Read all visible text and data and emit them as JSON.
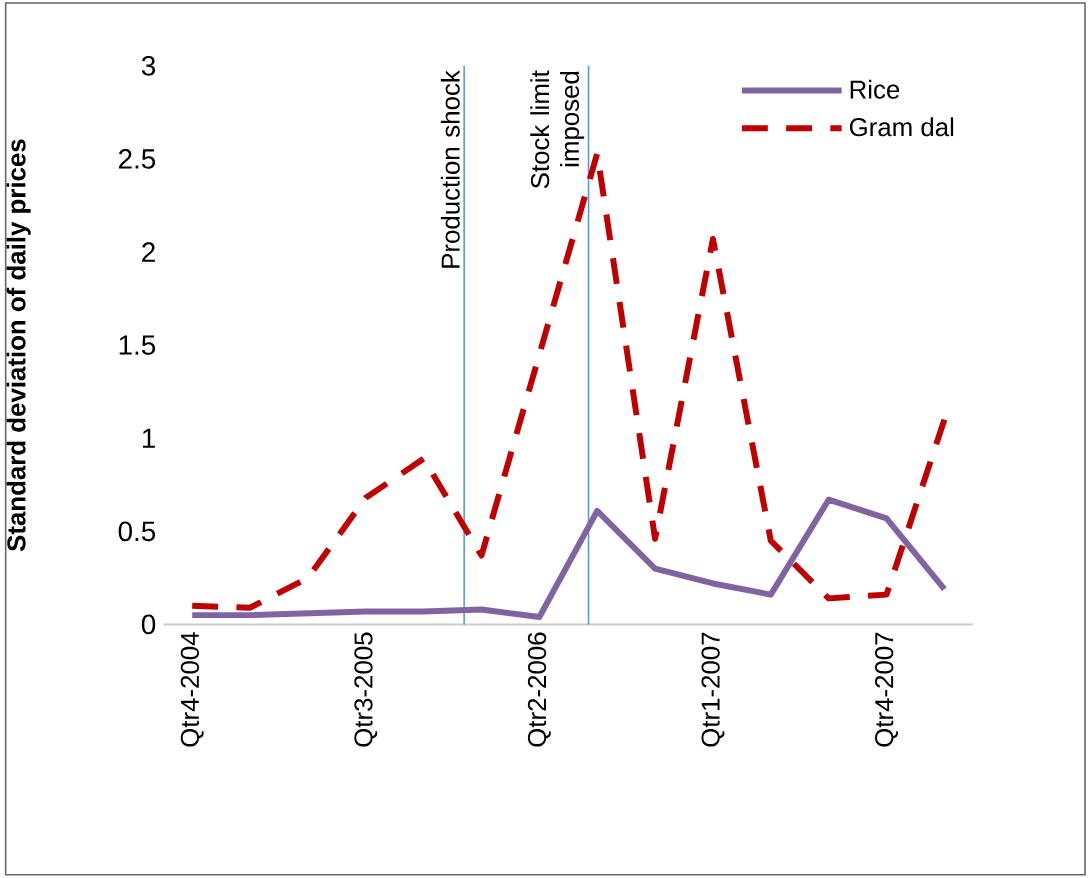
{
  "chart_data": {
    "type": "line",
    "ylabel": "Standard deviation of daily prices",
    "categories": [
      "Qtr4-2004",
      null,
      null,
      "Qtr3-2005",
      null,
      null,
      "Qtr2-2006",
      null,
      null,
      "Qtr1-2007",
      null,
      null,
      "Qtr4-2007",
      null
    ],
    "series": [
      {
        "name": "Rice",
        "color": "#8064a2",
        "line_style": "solid",
        "values": [
          0.05,
          0.05,
          0.06,
          0.07,
          0.07,
          0.08,
          0.04,
          0.61,
          0.3,
          0.22,
          0.16,
          0.67,
          0.57,
          0.19
        ]
      },
      {
        "name": "Gram dal",
        "color": "#c00000",
        "line_style": "dashed",
        "values": [
          0.1,
          0.09,
          0.25,
          0.68,
          0.89,
          0.37,
          1.45,
          2.53,
          0.46,
          2.07,
          0.45,
          0.14,
          0.16,
          1.1
        ]
      }
    ],
    "ylim": [
      0,
      3
    ],
    "yticks": [
      0,
      0.5,
      1,
      1.5,
      2,
      2.5,
      3
    ],
    "annotations": [
      "Production shock",
      "Stock limit imposed"
    ],
    "grid": false,
    "legend": "top right",
    "marker": "none"
  }
}
